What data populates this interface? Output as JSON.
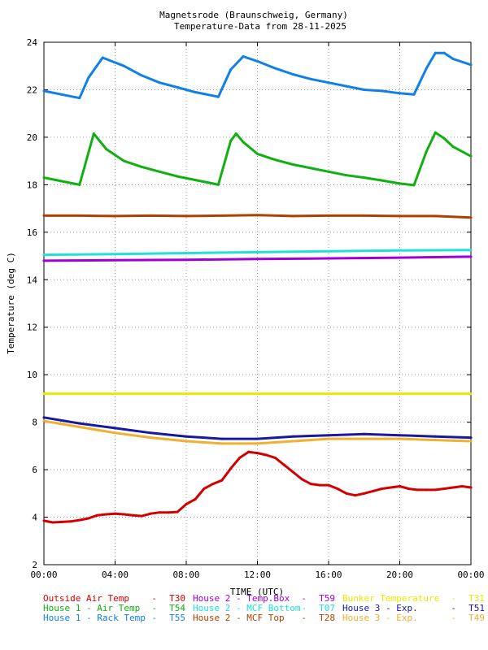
{
  "chart_data": {
    "type": "line",
    "title": "Magnetsrode (Braunschweig, Germany)",
    "subtitle": "Temperature-Data from 28-11-2025",
    "xlabel": "TIME (UTC)",
    "ylabel": "Temperature (deg C)",
    "xlim": [
      0,
      24
    ],
    "ylim": [
      2,
      24
    ],
    "x_ticks": [
      0,
      4,
      8,
      12,
      16,
      20,
      24
    ],
    "x_tick_labels": [
      "00:00",
      "04:00",
      "08:00",
      "12:00",
      "16:00",
      "20:00",
      "00:00"
    ],
    "y_ticks": [
      2,
      4,
      6,
      8,
      10,
      12,
      14,
      16,
      18,
      20,
      22,
      24
    ],
    "y_tick_labels": [
      "2",
      "4",
      "6",
      "8",
      "10",
      "12",
      "14",
      "16",
      "18",
      "20",
      "22",
      "24"
    ],
    "grid": true,
    "legend_position": "bottom",
    "series": [
      {
        "name": "Outside Air Temp",
        "code": "T30",
        "color": "#d40000",
        "x": [
          0,
          0.5,
          1,
          1.5,
          2,
          2.5,
          3,
          3.5,
          4,
          4.5,
          5,
          5.5,
          6,
          6.5,
          7,
          7.5,
          8,
          8.5,
          9,
          9.5,
          10,
          10.5,
          11,
          11.5,
          12,
          12.5,
          13,
          13.5,
          14,
          14.5,
          15,
          15.5,
          16,
          16.5,
          17,
          17.5,
          18,
          18.5,
          19,
          19.5,
          20,
          20.5,
          21,
          21.5,
          22,
          22.5,
          23,
          23.5,
          24
        ],
        "y": [
          3.85,
          3.78,
          3.8,
          3.82,
          3.88,
          3.95,
          4.08,
          4.12,
          4.15,
          4.12,
          4.08,
          4.05,
          4.15,
          4.2,
          4.2,
          4.22,
          4.55,
          4.75,
          5.2,
          5.4,
          5.55,
          6.05,
          6.5,
          6.75,
          6.7,
          6.62,
          6.5,
          6.2,
          5.9,
          5.6,
          5.4,
          5.35,
          5.35,
          5.2,
          5.0,
          4.92,
          5.0,
          5.1,
          5.2,
          5.25,
          5.3,
          5.2,
          5.15,
          5.15,
          5.15,
          5.2,
          5.25,
          5.3,
          5.25
        ]
      },
      {
        "name": "House 1 - Air  Temp",
        "code": "T54",
        "color": "#10b010",
        "x": [
          0,
          1,
          2,
          2.8,
          3.5,
          4.5,
          5.5,
          6.5,
          7.5,
          8.5,
          9.5,
          9.8,
          10.5,
          10.8,
          11.2,
          12,
          13,
          14,
          15,
          16,
          17,
          18,
          19,
          20,
          20.8,
          21.5,
          22,
          22.5,
          23,
          24
        ],
        "y": [
          18.3,
          18.15,
          18.0,
          20.15,
          19.5,
          19.0,
          18.75,
          18.55,
          18.35,
          18.2,
          18.05,
          18.0,
          19.85,
          20.15,
          19.8,
          19.3,
          19.05,
          18.85,
          18.7,
          18.55,
          18.4,
          18.3,
          18.18,
          18.05,
          17.98,
          19.4,
          20.2,
          19.95,
          19.6,
          19.2
        ]
      },
      {
        "name": "House 1 - Rack Temp",
        "code": "T55",
        "color": "#1080e8",
        "x": [
          0,
          1,
          2,
          2.5,
          3.3,
          4.5,
          5.5,
          6.5,
          7.5,
          8.5,
          9.5,
          9.8,
          10.5,
          11.2,
          12,
          13,
          14,
          15,
          16,
          17,
          18,
          19,
          20,
          20.8,
          21.5,
          22,
          22.5,
          23,
          24
        ],
        "y": [
          21.95,
          21.8,
          21.65,
          22.5,
          23.35,
          23.0,
          22.6,
          22.3,
          22.1,
          21.9,
          21.75,
          21.7,
          22.85,
          23.4,
          23.2,
          22.9,
          22.65,
          22.45,
          22.3,
          22.15,
          22.0,
          21.95,
          21.85,
          21.8,
          22.9,
          23.55,
          23.55,
          23.3,
          23.05
        ]
      },
      {
        "name": "House 2 - Temp.Box",
        "code": "T59",
        "color": "#a000d8",
        "x": [
          0,
          4,
          8,
          12,
          16,
          20,
          24
        ],
        "y": [
          14.8,
          14.82,
          14.84,
          14.87,
          14.9,
          14.93,
          14.97
        ]
      },
      {
        "name": "House 2 - MCF Bottom",
        "code": "T07",
        "color": "#20e0d8",
        "x": [
          0,
          4,
          8,
          12,
          16,
          20,
          24
        ],
        "y": [
          15.05,
          15.08,
          15.12,
          15.16,
          15.2,
          15.23,
          15.25
        ]
      },
      {
        "name": "House 2 - MCF Top",
        "code": "T28",
        "color": "#b04000",
        "x": [
          0,
          2,
          4,
          6,
          8,
          10,
          12,
          14,
          16,
          18,
          20,
          22,
          24
        ],
        "y": [
          16.7,
          16.7,
          16.68,
          16.7,
          16.68,
          16.7,
          16.72,
          16.68,
          16.7,
          16.7,
          16.68,
          16.68,
          16.62
        ]
      },
      {
        "name": "Bunker Temperature",
        "code": "T31",
        "color": "#e8e800",
        "x": [
          0,
          24
        ],
        "y": [
          9.2,
          9.2
        ]
      },
      {
        "name": "House 3 - Exp.",
        "code": "T51",
        "color": "#1818a0",
        "x": [
          0,
          2,
          4,
          6,
          8,
          10,
          12,
          14,
          16,
          18,
          20,
          22,
          24
        ],
        "y": [
          8.2,
          7.95,
          7.75,
          7.55,
          7.4,
          7.3,
          7.3,
          7.4,
          7.45,
          7.5,
          7.45,
          7.4,
          7.35
        ]
      },
      {
        "name": "House 3 - Exp.",
        "code": "T49",
        "color": "#f0b030",
        "x": [
          0,
          2,
          4,
          6,
          8,
          10,
          12,
          14,
          16,
          18,
          20,
          22,
          24
        ],
        "y": [
          8.05,
          7.8,
          7.55,
          7.35,
          7.2,
          7.1,
          7.1,
          7.2,
          7.3,
          7.3,
          7.3,
          7.25,
          7.2
        ]
      }
    ]
  }
}
